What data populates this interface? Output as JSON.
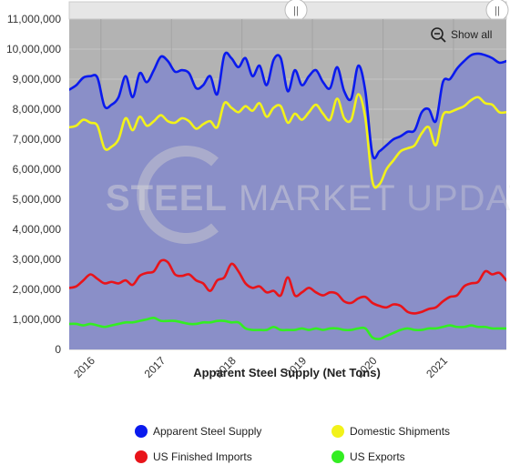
{
  "colors": {
    "plot_bg": "#b3b3b3",
    "area_fill": "#8a8fc8",
    "apparent": "#0a1aee",
    "domestic": "#f2f21a",
    "imports": "#e8141a",
    "exports": "#33ee22",
    "navigator": "#e6e6e6"
  },
  "controls": {
    "show_all_label": "Show all",
    "zoom_out_icon": "zoom-out-icon",
    "navigator_left_handle": "drag-handle-icon",
    "navigator_right_handle": "drag-handle-icon"
  },
  "watermark": {
    "bold": "STEEL",
    "mid": " MARKET ",
    "light": "UPDATE"
  },
  "chart_data": {
    "type": "line",
    "xlabel": "Apparent Steel Supply (Net Tons)",
    "ylabel": "",
    "xlim": [
      2015.55,
      2021.75
    ],
    "ylim": [
      0,
      11000000
    ],
    "y_ticks": [
      0,
      1000000,
      2000000,
      3000000,
      4000000,
      5000000,
      6000000,
      7000000,
      8000000,
      9000000,
      10000000,
      11000000
    ],
    "y_tick_labels": [
      "0",
      "1,000,000",
      "2,000,000",
      "3,000,000",
      "4,000,000",
      "5,000,000",
      "6,000,000",
      "7,000,000",
      "8,000,000",
      "9,000,000",
      "10,000,000",
      "11,000,000"
    ],
    "x_ticks": [
      2016,
      2017,
      2018,
      2019,
      2020,
      2021
    ],
    "x_tick_labels": [
      "2016",
      "2017",
      "2018",
      "2019",
      "2020",
      "2021"
    ],
    "grid": true,
    "legend_position": "bottom",
    "x": [
      2015.55,
      2015.65,
      2015.75,
      2015.85,
      2015.95,
      2016.05,
      2016.15,
      2016.25,
      2016.35,
      2016.45,
      2016.55,
      2016.65,
      2016.75,
      2016.85,
      2016.95,
      2017.05,
      2017.15,
      2017.25,
      2017.35,
      2017.45,
      2017.55,
      2017.65,
      2017.75,
      2017.85,
      2017.95,
      2018.05,
      2018.15,
      2018.25,
      2018.35,
      2018.45,
      2018.55,
      2018.65,
      2018.75,
      2018.85,
      2018.95,
      2019.05,
      2019.15,
      2019.25,
      2019.35,
      2019.45,
      2019.55,
      2019.65,
      2019.75,
      2019.85,
      2019.95,
      2020.05,
      2020.15,
      2020.25,
      2020.35,
      2020.45,
      2020.55,
      2020.65,
      2020.75,
      2020.85,
      2020.95,
      2021.05,
      2021.15,
      2021.25,
      2021.35,
      2021.45,
      2021.55,
      2021.65,
      2021.75
    ],
    "series": [
      {
        "name": "Apparent Steel Supply",
        "values": [
          8650000,
          8800000,
          9050000,
          9100000,
          9050000,
          8100000,
          8150000,
          8400000,
          9100000,
          8400000,
          9200000,
          8900000,
          9300000,
          9750000,
          9600000,
          9250000,
          9300000,
          9200000,
          8700000,
          8800000,
          9100000,
          8500000,
          9800000,
          9700000,
          9400000,
          9700000,
          9100000,
          9450000,
          8800000,
          9650000,
          9700000,
          8600000,
          9300000,
          8800000,
          9100000,
          9300000,
          8900000,
          8700000,
          9400000,
          8600000,
          8350000,
          9450000,
          8600000,
          6500000,
          6600000,
          6800000,
          7000000,
          7100000,
          7250000,
          7300000,
          7900000,
          8000000,
          7600000,
          8900000,
          9000000,
          9350000,
          9600000,
          9800000,
          9850000,
          9800000,
          9700000,
          9550000,
          9600000
        ]
      },
      {
        "name": "Domestic Shipments",
        "values": [
          7400000,
          7450000,
          7650000,
          7550000,
          7450000,
          6700000,
          6750000,
          7000000,
          7700000,
          7300000,
          7750000,
          7450000,
          7600000,
          7800000,
          7600000,
          7550000,
          7700000,
          7600000,
          7350000,
          7500000,
          7600000,
          7400000,
          8200000,
          8050000,
          7900000,
          8100000,
          7950000,
          8200000,
          7750000,
          8050000,
          8100000,
          7550000,
          7850000,
          7650000,
          7900000,
          8150000,
          7850000,
          7650000,
          8350000,
          7700000,
          7650000,
          8500000,
          7700000,
          5600000,
          5500000,
          6000000,
          6300000,
          6600000,
          6700000,
          6800000,
          7200000,
          7400000,
          6800000,
          7800000,
          7900000,
          8000000,
          8100000,
          8300000,
          8400000,
          8200000,
          8150000,
          7900000,
          7900000
        ]
      },
      {
        "name": "US Finished Imports",
        "values": [
          2050000,
          2100000,
          2300000,
          2500000,
          2350000,
          2200000,
          2250000,
          2200000,
          2300000,
          2150000,
          2450000,
          2550000,
          2600000,
          2950000,
          2900000,
          2500000,
          2450000,
          2500000,
          2300000,
          2200000,
          1950000,
          2300000,
          2400000,
          2850000,
          2600000,
          2200000,
          2050000,
          2100000,
          1900000,
          1950000,
          1800000,
          2400000,
          1800000,
          1900000,
          2050000,
          1900000,
          1800000,
          1900000,
          1850000,
          1600000,
          1550000,
          1700000,
          1750000,
          1550000,
          1450000,
          1400000,
          1500000,
          1450000,
          1250000,
          1200000,
          1250000,
          1350000,
          1400000,
          1600000,
          1750000,
          1800000,
          2100000,
          2200000,
          2250000,
          2600000,
          2500000,
          2550000,
          2300000
        ]
      },
      {
        "name": "US Exports",
        "values": [
          850000,
          850000,
          800000,
          850000,
          800000,
          750000,
          800000,
          850000,
          900000,
          900000,
          950000,
          1000000,
          1050000,
          950000,
          950000,
          950000,
          900000,
          850000,
          850000,
          900000,
          900000,
          950000,
          950000,
          900000,
          900000,
          700000,
          650000,
          650000,
          650000,
          750000,
          650000,
          650000,
          650000,
          700000,
          650000,
          700000,
          650000,
          700000,
          700000,
          650000,
          650000,
          700000,
          700000,
          400000,
          350000,
          450000,
          550000,
          650000,
          700000,
          650000,
          650000,
          700000,
          700000,
          750000,
          800000,
          750000,
          750000,
          800000,
          750000,
          750000,
          700000,
          700000,
          700000
        ]
      }
    ]
  }
}
